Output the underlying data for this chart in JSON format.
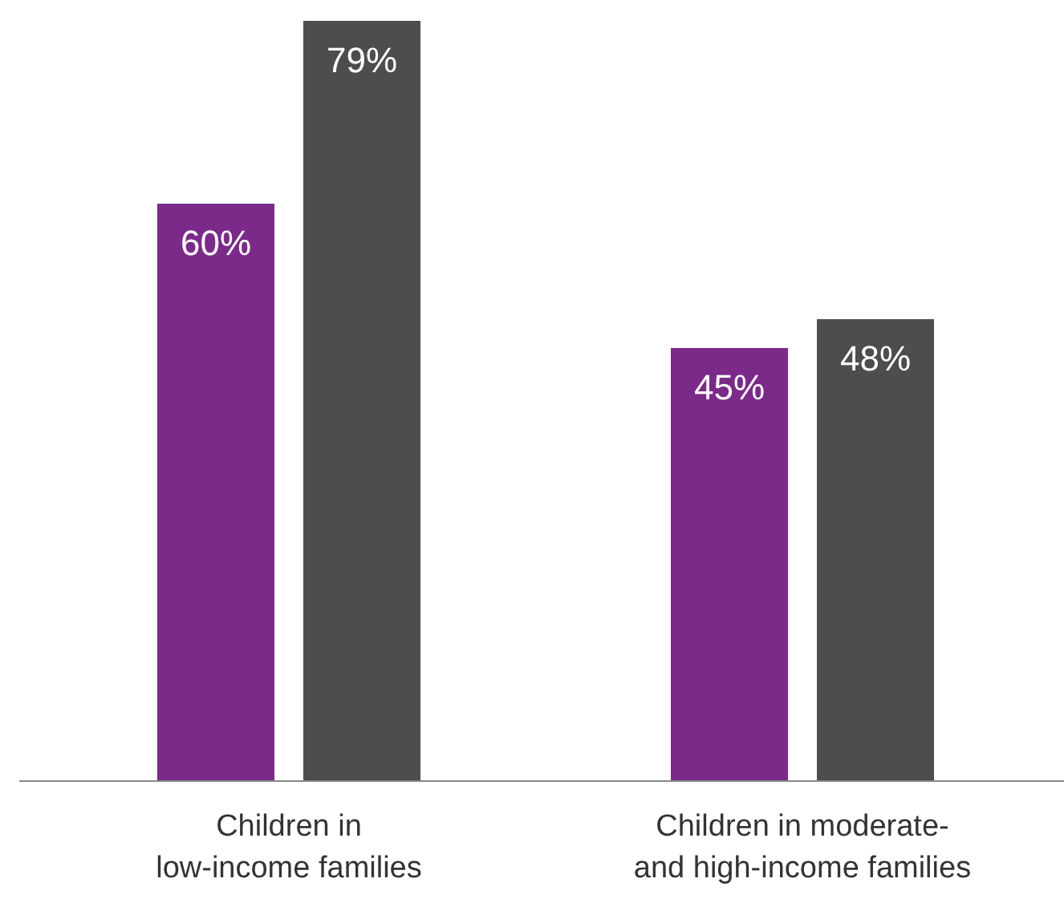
{
  "chart_data": {
    "type": "bar",
    "categories": [
      "Children in low-income families",
      "Children in moderate- and high-income families"
    ],
    "series": [
      {
        "color": "#7b2a8a",
        "values": [
          60,
          45
        ],
        "value_labels": [
          "60%",
          "45%"
        ]
      },
      {
        "color": "#4d4d4f",
        "values": [
          79,
          48
        ],
        "value_labels": [
          "79%",
          "48%"
        ]
      }
    ],
    "stacked": false
  }
}
